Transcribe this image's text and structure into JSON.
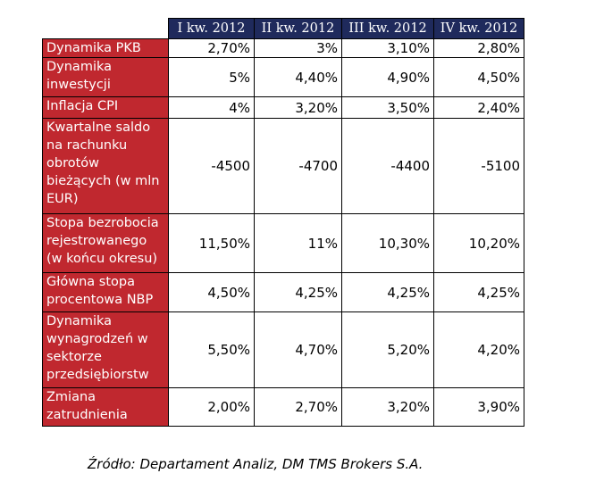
{
  "table": {
    "columns": [
      "I kw. 2012",
      "II kw. 2012",
      "III kw. 2012",
      "IV kw. 2012"
    ],
    "rows": [
      {
        "label": "Dynamika  PKB",
        "values": [
          "2,70%",
          "3%",
          "3,10%",
          "2,80%"
        ]
      },
      {
        "label": "Dynamika inwestycji",
        "values": [
          "5%",
          "4,40%",
          "4,90%",
          "4,50%"
        ]
      },
      {
        "label": "Inflacja CPI",
        "values": [
          "4%",
          "3,20%",
          "3,50%",
          "2,40%"
        ]
      },
      {
        "label": "Kwartalne saldo na rachunku obrotów bieżących (w mln EUR)",
        "values": [
          "-4500",
          "-4700",
          "-4400",
          "-5100"
        ]
      },
      {
        "label": "Stopa bezrobocia rejestrowanego (w końcu okresu)",
        "values": [
          "11,50%",
          "11%",
          "10,30%",
          "10,20%"
        ]
      },
      {
        "label": "Główna stopa procentowa NBP",
        "values": [
          "4,50%",
          "4,25%",
          "4,25%",
          "4,25%"
        ]
      },
      {
        "label": "Dynamika wynagrodzeń w sektorze przedsiębiorstw",
        "values": [
          "5,50%",
          "4,70%",
          "5,20%",
          "4,20%"
        ]
      },
      {
        "label": "Zmiana zatrudnienia",
        "values": [
          "2,00%",
          "2,70%",
          "3,20%",
          "3,90%"
        ]
      }
    ]
  },
  "source": "Źródło: Departament Analiz, DM TMS Brokers S.A.",
  "colors": {
    "header_bg": "#1f2a5c",
    "label_bg": "#c0282f"
  }
}
